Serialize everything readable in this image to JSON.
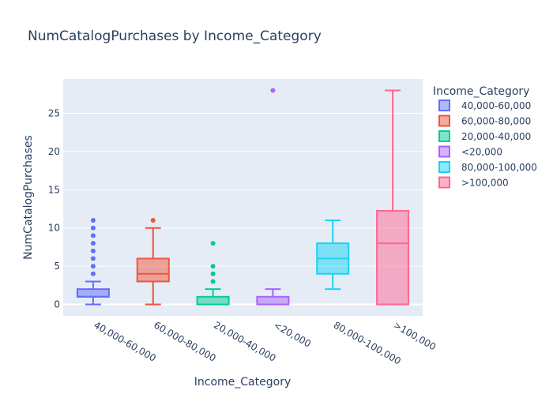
{
  "chart_data": {
    "type": "box",
    "title": "NumCatalogPurchases by Income_Category",
    "xlabel": "Income_Category",
    "ylabel": "NumCatalogPurchases",
    "ylim": [
      -1.5,
      29.5
    ],
    "yticks": [
      0,
      5,
      10,
      15,
      20,
      25
    ],
    "grid": true,
    "legend_title": "Income_Category",
    "legend_position": "right",
    "categories": [
      "40,000-60,000",
      "60,000-80,000",
      "20,000-40,000",
      "<20,000",
      "80,000-100,000",
      ">100,000"
    ],
    "series": [
      {
        "name": "40,000-60,000",
        "color": "#636efa",
        "min": 0,
        "q1": 1,
        "median": 1,
        "q3": 2,
        "max": 3,
        "outliers": [
          4,
          5,
          6,
          7,
          8,
          9,
          10,
          11
        ]
      },
      {
        "name": "60,000-80,000",
        "color": "#EF553B",
        "min": 0,
        "q1": 3,
        "median": 4,
        "q3": 6,
        "max": 10,
        "outliers": [
          11
        ]
      },
      {
        "name": "20,000-40,000",
        "color": "#00cc96",
        "min": 0,
        "q1": 0,
        "median": 0,
        "q3": 1,
        "max": 2,
        "outliers": [
          3,
          4,
          5,
          8
        ]
      },
      {
        "name": "<20,000",
        "color": "#ab63fa",
        "min": 0,
        "q1": 0,
        "median": 0,
        "q3": 1,
        "max": 2,
        "outliers": [
          28
        ]
      },
      {
        "name": "80,000-100,000",
        "color": "#19d3f3",
        "min": 2,
        "q1": 4,
        "median": 6,
        "q3": 8,
        "max": 11,
        "outliers": []
      },
      {
        "name": ">100,000",
        "color": "#FF6692",
        "min": 0,
        "q1": 0,
        "median": 8,
        "q3": 12.25,
        "max": 28,
        "outliers": []
      }
    ]
  }
}
